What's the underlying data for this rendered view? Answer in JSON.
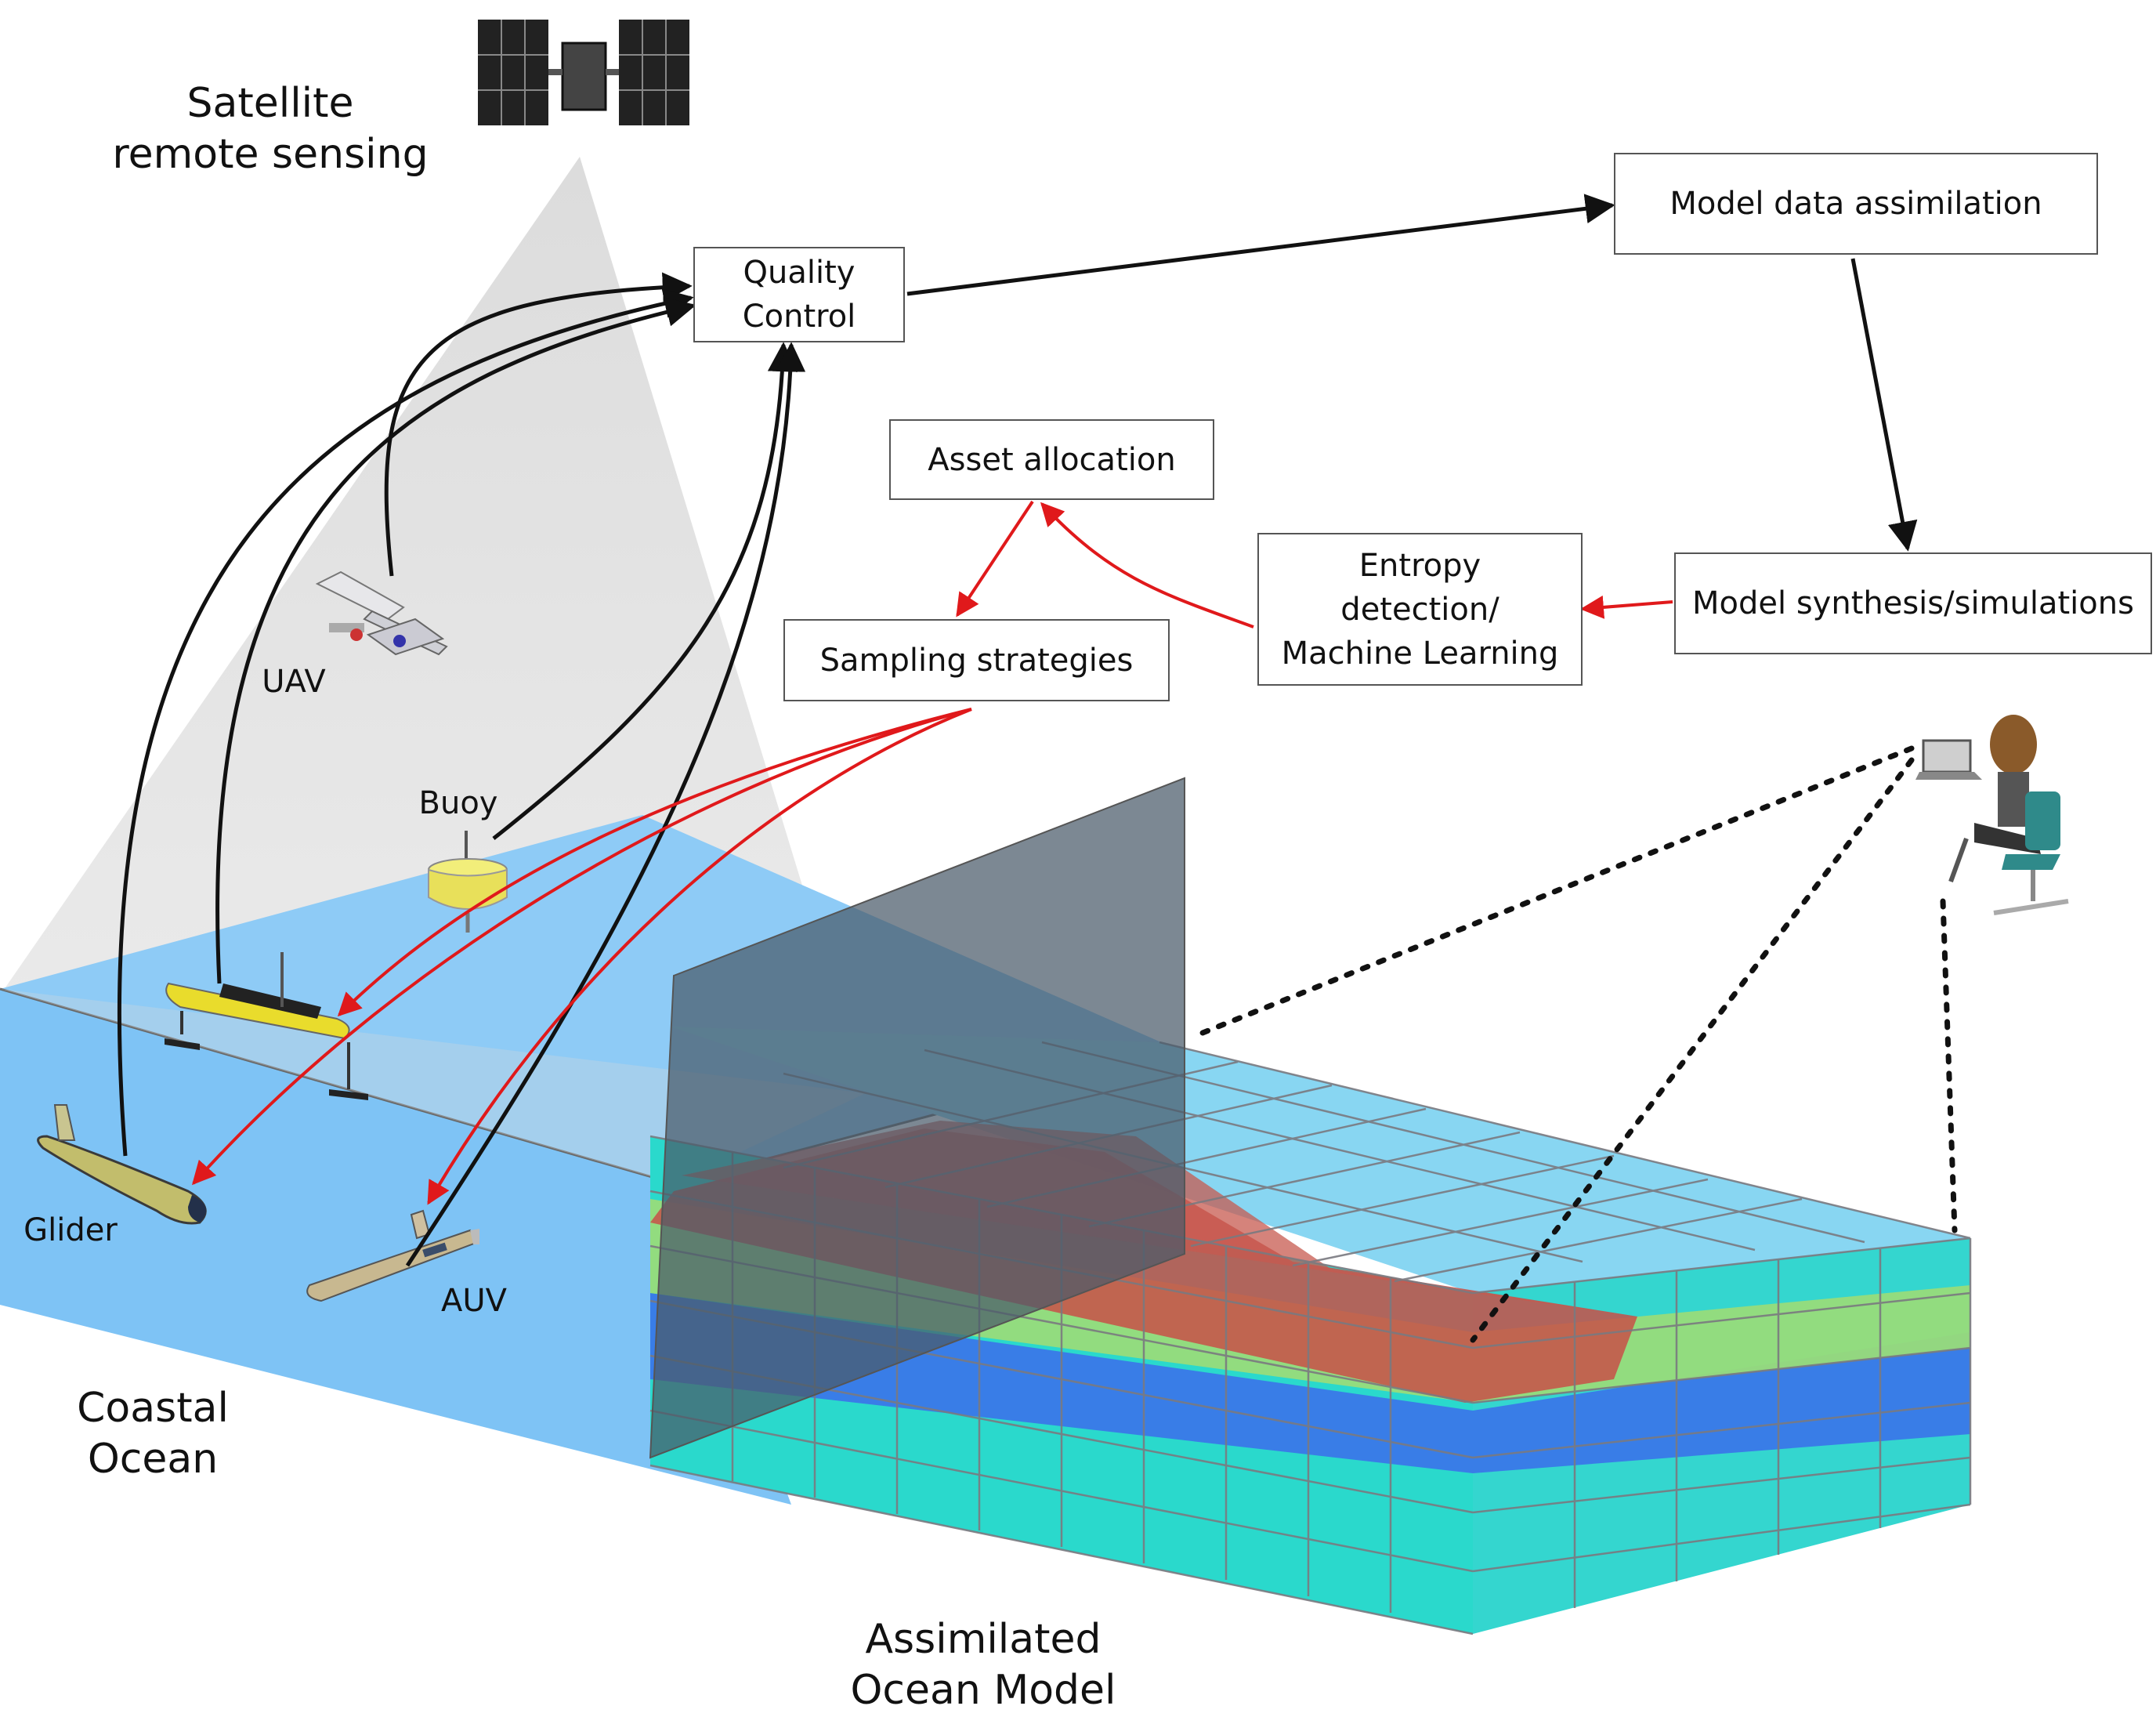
{
  "labels": {
    "satellite": "Satellite\nremote sensing",
    "uav": "UAV",
    "buoy": "Buoy",
    "glider": "Glider",
    "auv": "AUV",
    "coastal_ocean": "Coastal\nOcean",
    "assimilated_model": "Assimilated\nOcean Model"
  },
  "boxes": {
    "quality_control": "Quality\nControl",
    "model_data_assimilation": "Model data assimilation",
    "asset_allocation": "Asset allocation",
    "sampling_strategies": "Sampling strategies",
    "entropy_detection": "Entropy\ndetection/\nMachine Learning",
    "model_synthesis": "Model synthesis/simulations"
  },
  "colors": {
    "ocean": "#7ec3f5",
    "black_arrow": "#111111",
    "red_arrow": "#e0191b",
    "buoy_yellow": "#e8e05a",
    "model_red": "#c85048",
    "model_green": "#98dc7a",
    "model_blue": "#3a78e8",
    "model_teal": "#2ee0d0",
    "model_cyan": "#82d8f4"
  }
}
